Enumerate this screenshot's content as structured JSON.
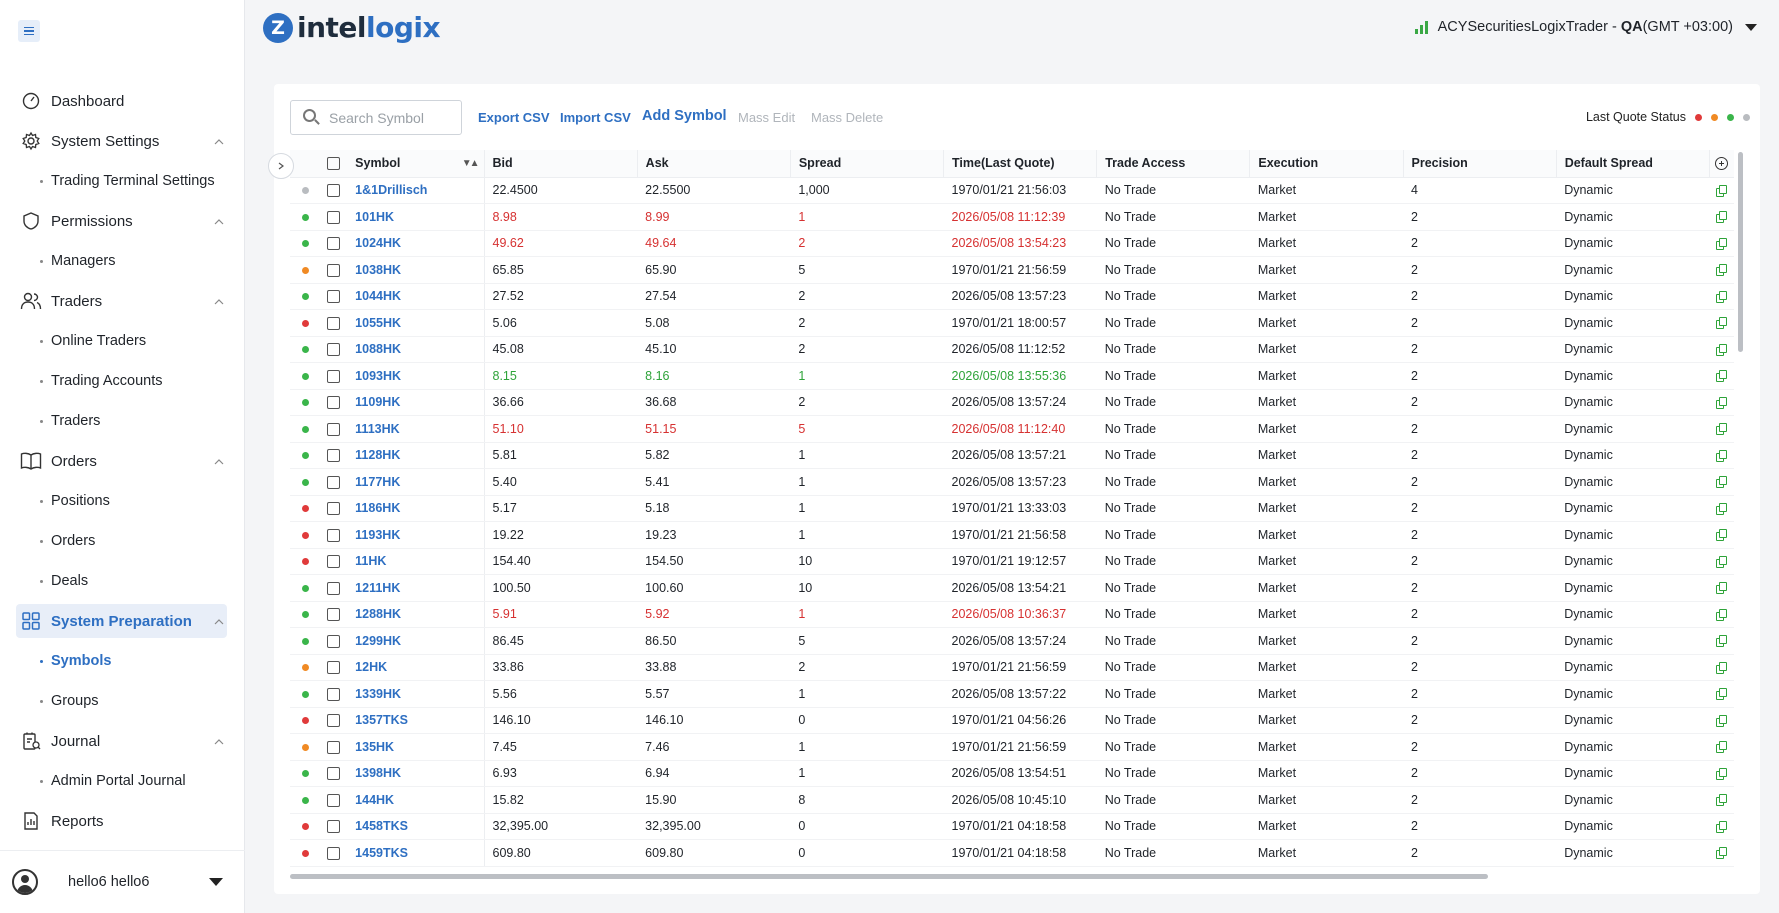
{
  "sidebar": {
    "menu_icon": "hamburger-icon",
    "nav": [
      {
        "label": "Dashboard",
        "icon": "dashboard-icon",
        "children": []
      },
      {
        "label": "System Settings",
        "icon": "gear-icon",
        "children": [
          "Trading Terminal Settings"
        ]
      },
      {
        "label": "Permissions",
        "icon": "shield-icon",
        "children": [
          "Managers"
        ]
      },
      {
        "label": "Traders",
        "icon": "users-icon",
        "children": [
          "Online Traders",
          "Trading Accounts",
          "Traders"
        ]
      },
      {
        "label": "Orders",
        "icon": "book-icon",
        "children": [
          "Positions",
          "Orders",
          "Deals"
        ]
      },
      {
        "label": "System Preparation",
        "icon": "grid-icon",
        "children": [
          "Symbols",
          "Groups"
        ]
      },
      {
        "label": "Journal",
        "icon": "journal-icon",
        "children": [
          "Admin Portal Journal"
        ]
      },
      {
        "label": "Reports",
        "icon": "reports-icon",
        "children": []
      }
    ],
    "active_parent": "System Preparation",
    "active_child": "Symbols",
    "user": "hello6 hello6"
  },
  "header": {
    "logo_prefix": "intel",
    "logo_suffix": "logix",
    "account_name": "ACYSecuritiesLogixTrader - ",
    "account_env": "QA",
    "account_tz": "(GMT +03:00)"
  },
  "toolbar": {
    "search_placeholder": "Search Symbol",
    "export_csv": "Export CSV",
    "import_csv": "Import CSV",
    "add_symbol": "Add Symbol",
    "mass_edit": "Mass Edit",
    "mass_delete": "Mass Delete",
    "last_quote_status": "Last Quote Status",
    "status_colors": [
      "#e03a3a",
      "#f08a24",
      "#3ab54a",
      "#b9bcc0"
    ]
  },
  "table": {
    "columns": [
      "Symbol",
      "Bid",
      "Ask",
      "Spread",
      "Time(Last Quote)",
      "Trade Access",
      "Execution",
      "Precision",
      "Default Spread"
    ],
    "rows": [
      {
        "status": "grey",
        "tone": "",
        "symbol": "1&1Drillisch",
        "bid": "22.4500",
        "ask": "22.5500",
        "spread": "1,000",
        "time": "1970/01/21 21:56:03",
        "access": "No Trade",
        "execution": "Market",
        "precision": "4",
        "default_spread": "Dynamic"
      },
      {
        "status": "green",
        "tone": "red",
        "symbol": "101HK",
        "bid": "8.98",
        "ask": "8.99",
        "spread": "1",
        "time": "2026/05/08 11:12:39",
        "access": "No Trade",
        "execution": "Market",
        "precision": "2",
        "default_spread": "Dynamic"
      },
      {
        "status": "green",
        "tone": "red",
        "symbol": "1024HK",
        "bid": "49.62",
        "ask": "49.64",
        "spread": "2",
        "time": "2026/05/08 13:54:23",
        "access": "No Trade",
        "execution": "Market",
        "precision": "2",
        "default_spread": "Dynamic"
      },
      {
        "status": "orange",
        "tone": "",
        "symbol": "1038HK",
        "bid": "65.85",
        "ask": "65.90",
        "spread": "5",
        "time": "1970/01/21 21:56:59",
        "access": "No Trade",
        "execution": "Market",
        "precision": "2",
        "default_spread": "Dynamic"
      },
      {
        "status": "green",
        "tone": "",
        "symbol": "1044HK",
        "bid": "27.52",
        "ask": "27.54",
        "spread": "2",
        "time": "2026/05/08 13:57:23",
        "access": "No Trade",
        "execution": "Market",
        "precision": "2",
        "default_spread": "Dynamic"
      },
      {
        "status": "red",
        "tone": "",
        "symbol": "1055HK",
        "bid": "5.06",
        "ask": "5.08",
        "spread": "2",
        "time": "1970/01/21 18:00:57",
        "access": "No Trade",
        "execution": "Market",
        "precision": "2",
        "default_spread": "Dynamic"
      },
      {
        "status": "green",
        "tone": "",
        "symbol": "1088HK",
        "bid": "45.08",
        "ask": "45.10",
        "spread": "2",
        "time": "2026/05/08 11:12:52",
        "access": "No Trade",
        "execution": "Market",
        "precision": "2",
        "default_spread": "Dynamic"
      },
      {
        "status": "green",
        "tone": "green",
        "symbol": "1093HK",
        "bid": "8.15",
        "ask": "8.16",
        "spread": "1",
        "time": "2026/05/08 13:55:36",
        "access": "No Trade",
        "execution": "Market",
        "precision": "2",
        "default_spread": "Dynamic"
      },
      {
        "status": "green",
        "tone": "",
        "symbol": "1109HK",
        "bid": "36.66",
        "ask": "36.68",
        "spread": "2",
        "time": "2026/05/08 13:57:24",
        "access": "No Trade",
        "execution": "Market",
        "precision": "2",
        "default_spread": "Dynamic"
      },
      {
        "status": "green",
        "tone": "red",
        "symbol": "1113HK",
        "bid": "51.10",
        "ask": "51.15",
        "spread": "5",
        "time": "2026/05/08 11:12:40",
        "access": "No Trade",
        "execution": "Market",
        "precision": "2",
        "default_spread": "Dynamic"
      },
      {
        "status": "green",
        "tone": "",
        "symbol": "1128HK",
        "bid": "5.81",
        "ask": "5.82",
        "spread": "1",
        "time": "2026/05/08 13:57:21",
        "access": "No Trade",
        "execution": "Market",
        "precision": "2",
        "default_spread": "Dynamic"
      },
      {
        "status": "green",
        "tone": "",
        "symbol": "1177HK",
        "bid": "5.40",
        "ask": "5.41",
        "spread": "1",
        "time": "2026/05/08 13:57:23",
        "access": "No Trade",
        "execution": "Market",
        "precision": "2",
        "default_spread": "Dynamic"
      },
      {
        "status": "red",
        "tone": "",
        "symbol": "1186HK",
        "bid": "5.17",
        "ask": "5.18",
        "spread": "1",
        "time": "1970/01/21 13:33:03",
        "access": "No Trade",
        "execution": "Market",
        "precision": "2",
        "default_spread": "Dynamic"
      },
      {
        "status": "red",
        "tone": "",
        "symbol": "1193HK",
        "bid": "19.22",
        "ask": "19.23",
        "spread": "1",
        "time": "1970/01/21 21:56:58",
        "access": "No Trade",
        "execution": "Market",
        "precision": "2",
        "default_spread": "Dynamic"
      },
      {
        "status": "red",
        "tone": "",
        "symbol": "11HK",
        "bid": "154.40",
        "ask": "154.50",
        "spread": "10",
        "time": "1970/01/21 19:12:57",
        "access": "No Trade",
        "execution": "Market",
        "precision": "2",
        "default_spread": "Dynamic"
      },
      {
        "status": "green",
        "tone": "",
        "symbol": "1211HK",
        "bid": "100.50",
        "ask": "100.60",
        "spread": "10",
        "time": "2026/05/08 13:54:21",
        "access": "No Trade",
        "execution": "Market",
        "precision": "2",
        "default_spread": "Dynamic"
      },
      {
        "status": "green",
        "tone": "red",
        "symbol": "1288HK",
        "bid": "5.91",
        "ask": "5.92",
        "spread": "1",
        "time": "2026/05/08 10:36:37",
        "access": "No Trade",
        "execution": "Market",
        "precision": "2",
        "default_spread": "Dynamic"
      },
      {
        "status": "green",
        "tone": "",
        "symbol": "1299HK",
        "bid": "86.45",
        "ask": "86.50",
        "spread": "5",
        "time": "2026/05/08 13:57:24",
        "access": "No Trade",
        "execution": "Market",
        "precision": "2",
        "default_spread": "Dynamic"
      },
      {
        "status": "orange",
        "tone": "",
        "symbol": "12HK",
        "bid": "33.86",
        "ask": "33.88",
        "spread": "2",
        "time": "1970/01/21 21:56:59",
        "access": "No Trade",
        "execution": "Market",
        "precision": "2",
        "default_spread": "Dynamic"
      },
      {
        "status": "green",
        "tone": "",
        "symbol": "1339HK",
        "bid": "5.56",
        "ask": "5.57",
        "spread": "1",
        "time": "2026/05/08 13:57:22",
        "access": "No Trade",
        "execution": "Market",
        "precision": "2",
        "default_spread": "Dynamic"
      },
      {
        "status": "red",
        "tone": "",
        "symbol": "1357TKS",
        "bid": "146.10",
        "ask": "146.10",
        "spread": "0",
        "time": "1970/01/21 04:56:26",
        "access": "No Trade",
        "execution": "Market",
        "precision": "2",
        "default_spread": "Dynamic"
      },
      {
        "status": "orange",
        "tone": "",
        "symbol": "135HK",
        "bid": "7.45",
        "ask": "7.46",
        "spread": "1",
        "time": "1970/01/21 21:56:59",
        "access": "No Trade",
        "execution": "Market",
        "precision": "2",
        "default_spread": "Dynamic"
      },
      {
        "status": "green",
        "tone": "",
        "symbol": "1398HK",
        "bid": "6.93",
        "ask": "6.94",
        "spread": "1",
        "time": "2026/05/08 13:54:51",
        "access": "No Trade",
        "execution": "Market",
        "precision": "2",
        "default_spread": "Dynamic"
      },
      {
        "status": "green",
        "tone": "",
        "symbol": "144HK",
        "bid": "15.82",
        "ask": "15.90",
        "spread": "8",
        "time": "2026/05/08 10:45:10",
        "access": "No Trade",
        "execution": "Market",
        "precision": "2",
        "default_spread": "Dynamic"
      },
      {
        "status": "red",
        "tone": "",
        "symbol": "1458TKS",
        "bid": "32,395.00",
        "ask": "32,395.00",
        "spread": "0",
        "time": "1970/01/21 04:18:58",
        "access": "No Trade",
        "execution": "Market",
        "precision": "2",
        "default_spread": "Dynamic"
      },
      {
        "status": "red",
        "tone": "",
        "symbol": "1459TKS",
        "bid": "609.80",
        "ask": "609.80",
        "spread": "0",
        "time": "1970/01/21 04:18:58",
        "access": "No Trade",
        "execution": "Market",
        "precision": "2",
        "default_spread": "Dynamic"
      }
    ],
    "status_color_map": {
      "green": "#3ab54a",
      "red": "#e03a3a",
      "orange": "#f08a24",
      "grey": "#b9bcc0"
    }
  }
}
